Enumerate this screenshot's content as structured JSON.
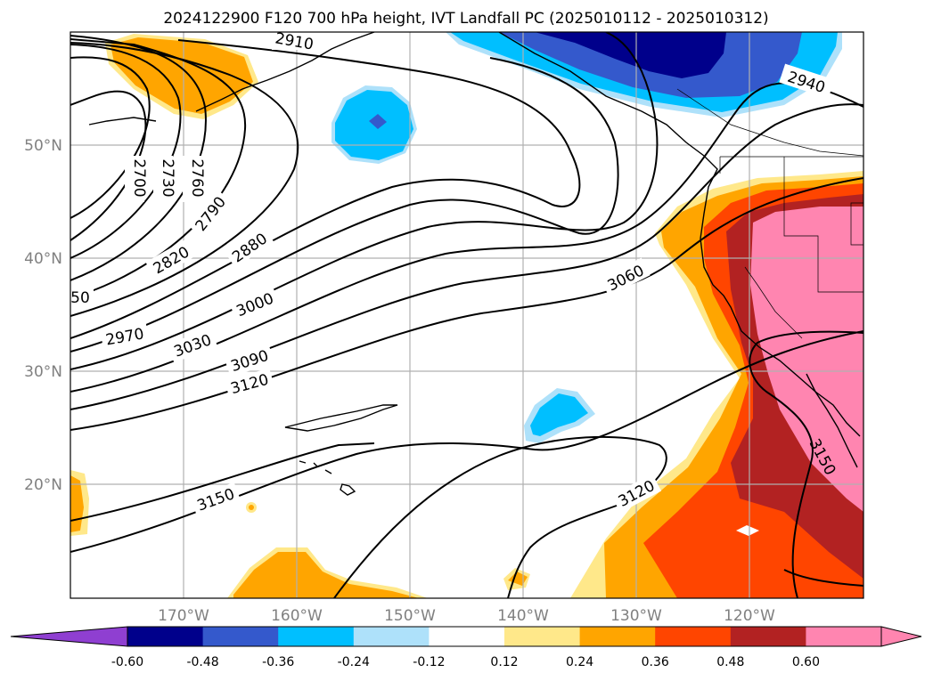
{
  "title": "2024122900 F120 700 hPa height, IVT Landfall PC (2025010112 - 2025010312)",
  "map": {
    "lat_ticks": [
      "50°N",
      "40°N",
      "30°N",
      "20°N"
    ],
    "lon_ticks": [
      "170°W",
      "160°W",
      "150°W",
      "140°W",
      "130°W",
      "120°W"
    ],
    "contour_labels": [
      "2910",
      "2940",
      "2700",
      "2730",
      "2760",
      "2790",
      "2820",
      "2880",
      "50",
      "3000",
      "3060",
      "2970",
      "3030",
      "3090",
      "3120",
      "3150",
      "3120",
      "3150"
    ]
  },
  "colorbar": {
    "labels": [
      "-0.60",
      "-0.48",
      "-0.36",
      "-0.24",
      "-0.12",
      "0.12",
      "0.24",
      "0.36",
      "0.48",
      "0.60"
    ],
    "colors": {
      "under": "#8f3fd1",
      "bins": [
        "#00008b",
        "#3459cc",
        "#00bfff",
        "#aee1fa",
        "#ffffff",
        "#ffe88a",
        "#ffa500",
        "#ff4500",
        "#b22222",
        "#ff85b0"
      ],
      "over": "#ff85b0"
    }
  }
}
